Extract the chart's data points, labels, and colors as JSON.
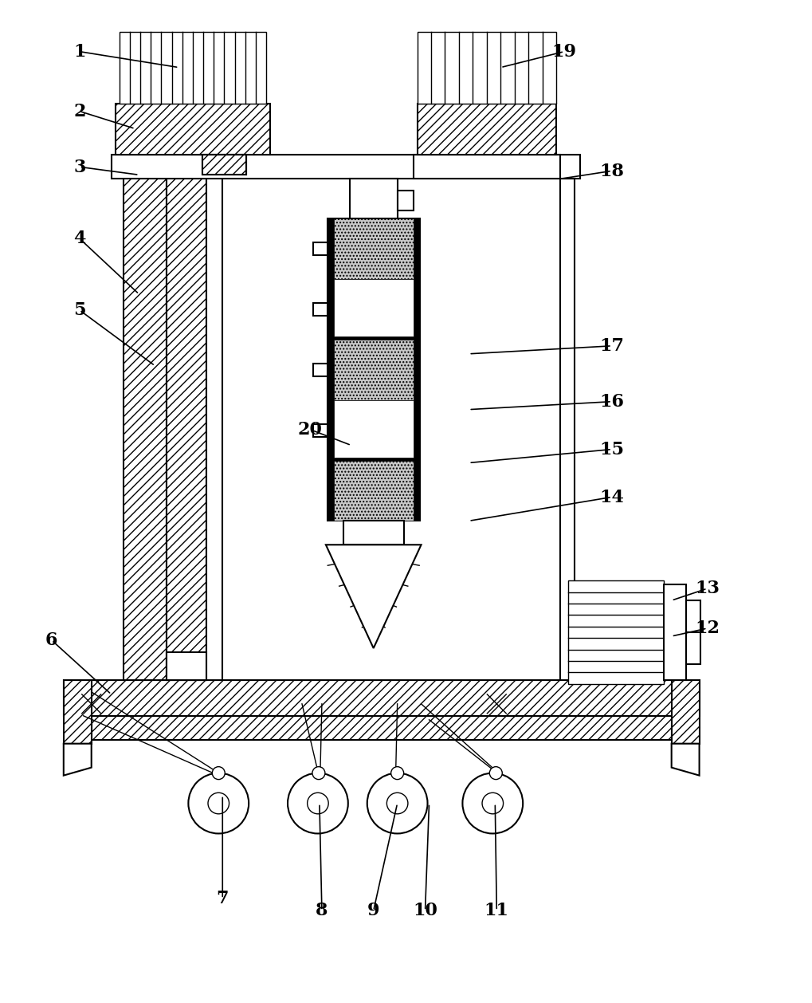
{
  "bg_color": "#ffffff",
  "fig_width": 10.02,
  "fig_height": 12.41,
  "dpi": 100,
  "lw": 1.5,
  "lw2": 1.0,
  "lw3": 0.8
}
